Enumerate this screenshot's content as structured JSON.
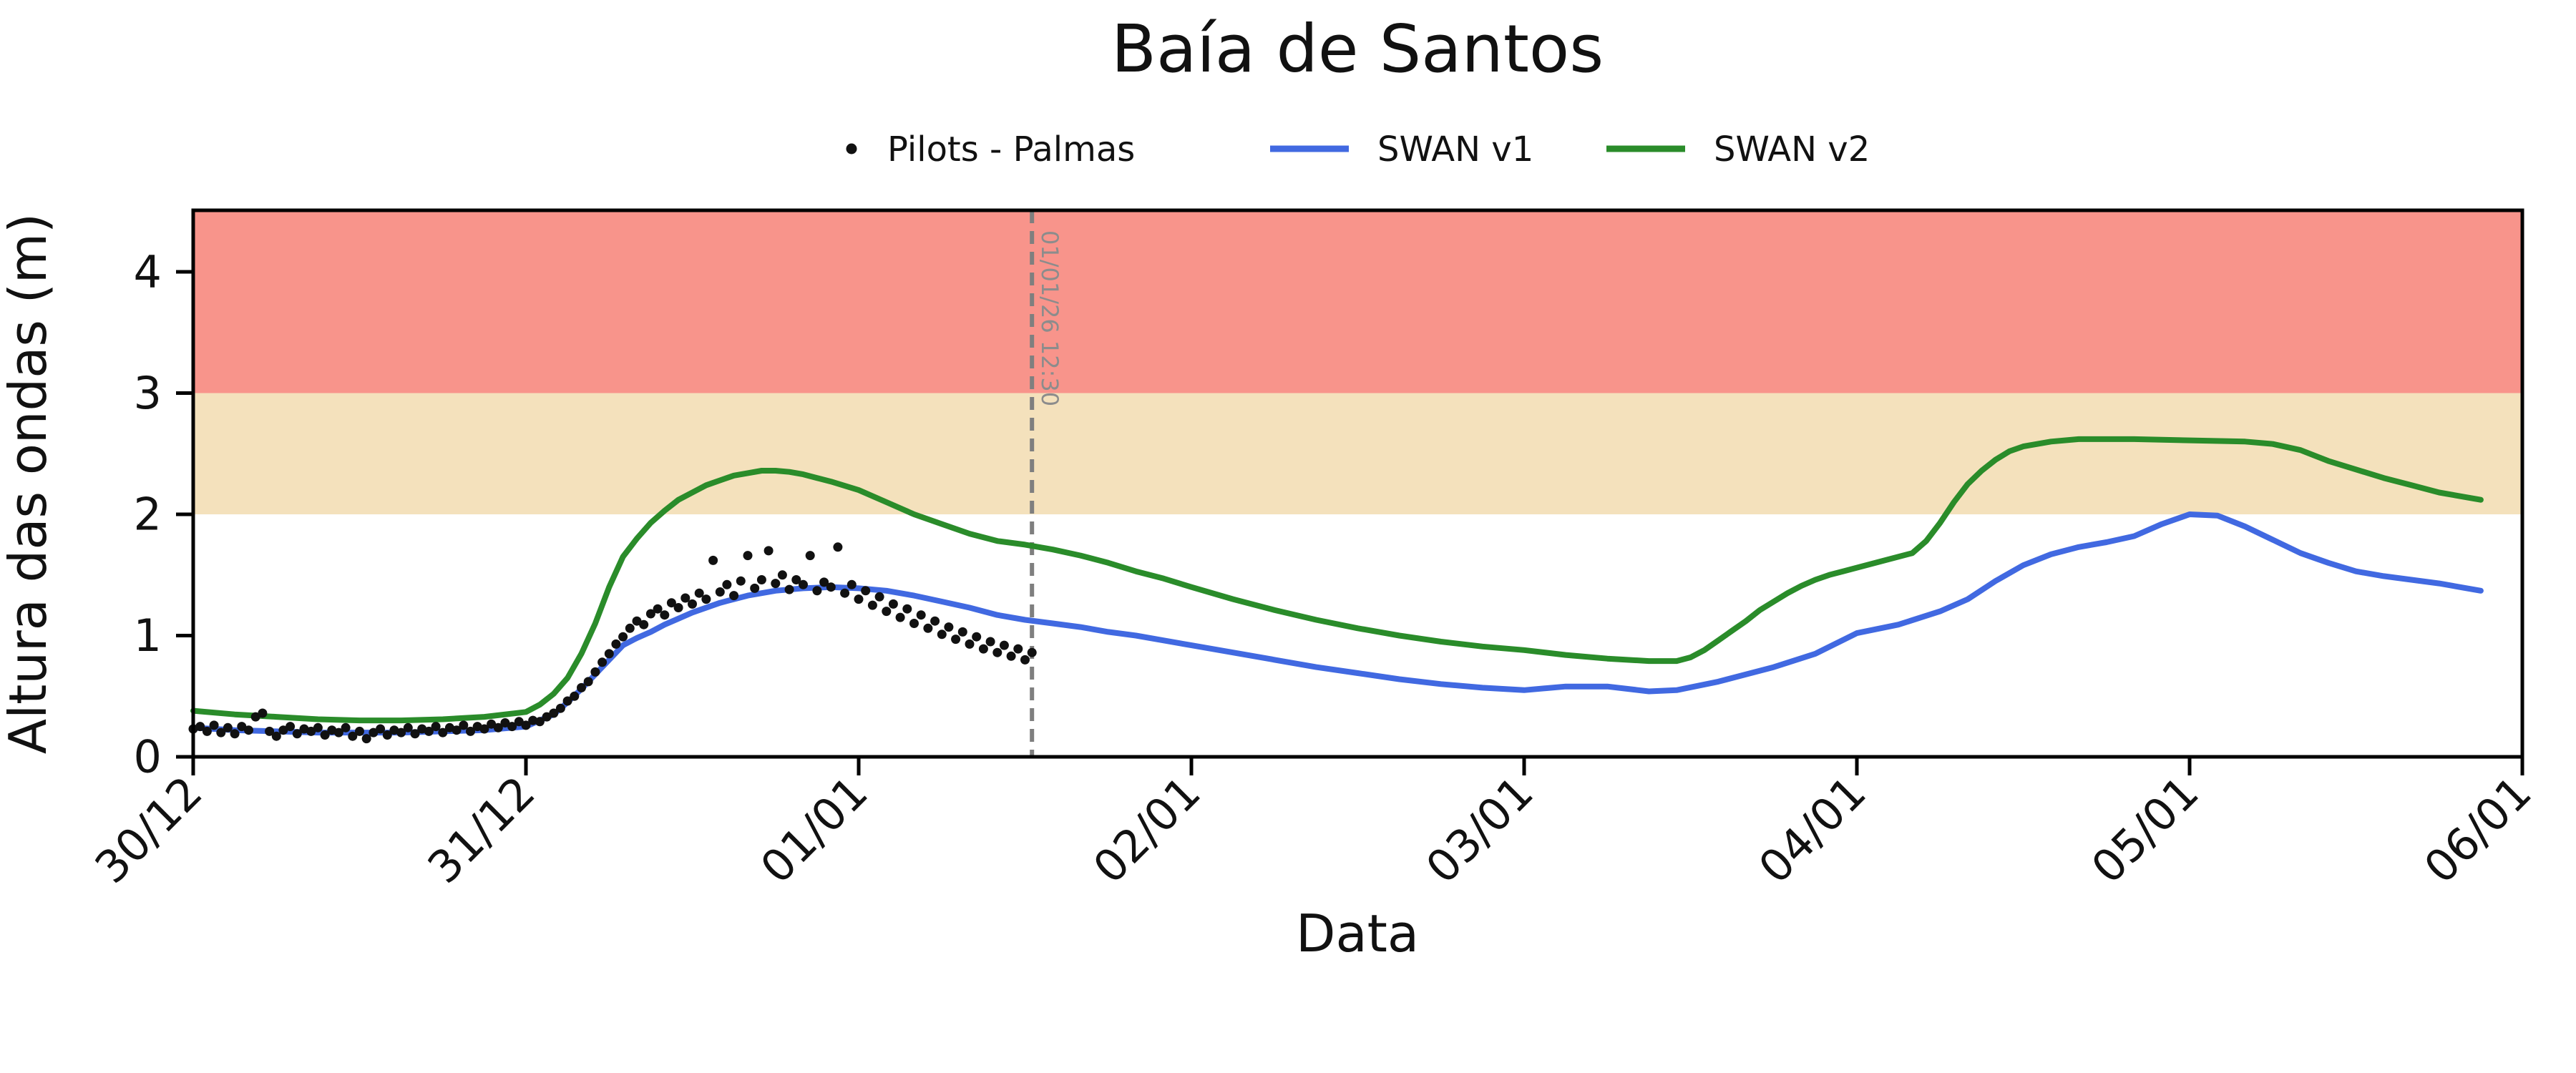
{
  "figure": {
    "title": "Baía de Santos",
    "xlabel": "Data",
    "ylabel": "Altura das ondas (m)",
    "background": "#ffffff"
  },
  "legend": {
    "items": [
      {
        "label": "Pilots - Palmas",
        "type": "scatter",
        "color": "#111111"
      },
      {
        "label": "SWAN v1",
        "type": "line",
        "color": "#4169e1"
      },
      {
        "label": "SWAN v2",
        "type": "line",
        "color": "#2a8c2a"
      }
    ]
  },
  "chart_data": {
    "type": "line",
    "title": "Baía de Santos",
    "xlabel": "Data",
    "ylabel": "Altura das ondas (m)",
    "x_unit": "hours since 30/12 00:00",
    "xlim": [
      0,
      168
    ],
    "ylim": [
      0,
      4.51
    ],
    "grid": false,
    "legend_position": "top-center",
    "yticks": [
      0,
      1,
      2,
      3,
      4
    ],
    "xticks": [
      {
        "hour": 0,
        "label": "30/12"
      },
      {
        "hour": 24,
        "label": "31/12"
      },
      {
        "hour": 48,
        "label": "01/01"
      },
      {
        "hour": 72,
        "label": "02/01"
      },
      {
        "hour": 96,
        "label": "03/01"
      },
      {
        "hour": 120,
        "label": "04/01"
      },
      {
        "hour": 144,
        "label": "05/01"
      },
      {
        "hour": 168,
        "label": "06/01"
      }
    ],
    "bands": [
      {
        "name": "danger-band",
        "from": 3,
        "to": 4.51,
        "color": "#f8948b"
      },
      {
        "name": "warning-band",
        "from": 2,
        "to": 3,
        "color": "#f4e1bc"
      }
    ],
    "vline": {
      "hour": 60.5,
      "label": "01/01/26 12:30",
      "color": "#7f7f7f",
      "label_color": "#8c8c8c"
    },
    "series": [
      {
        "name": "SWAN v1",
        "color": "#4169e1",
        "points": [
          [
            0,
            0.24
          ],
          [
            3,
            0.22
          ],
          [
            6,
            0.21
          ],
          [
            9,
            0.2
          ],
          [
            12,
            0.2
          ],
          [
            15,
            0.2
          ],
          [
            18,
            0.21
          ],
          [
            21,
            0.22
          ],
          [
            24,
            0.25
          ],
          [
            26,
            0.35
          ],
          [
            27,
            0.45
          ],
          [
            28,
            0.56
          ],
          [
            29,
            0.68
          ],
          [
            30,
            0.8
          ],
          [
            31,
            0.92
          ],
          [
            32,
            0.98
          ],
          [
            33,
            1.03
          ],
          [
            34,
            1.09
          ],
          [
            35,
            1.14
          ],
          [
            36,
            1.19
          ],
          [
            38,
            1.27
          ],
          [
            40,
            1.33
          ],
          [
            42,
            1.37
          ],
          [
            44,
            1.39
          ],
          [
            46,
            1.4
          ],
          [
            48,
            1.39
          ],
          [
            50,
            1.37
          ],
          [
            52,
            1.33
          ],
          [
            54,
            1.28
          ],
          [
            56,
            1.23
          ],
          [
            58,
            1.17
          ],
          [
            60,
            1.13
          ],
          [
            62,
            1.1
          ],
          [
            64,
            1.07
          ],
          [
            66,
            1.03
          ],
          [
            68,
            1.0
          ],
          [
            70,
            0.96
          ],
          [
            72,
            0.92
          ],
          [
            75,
            0.86
          ],
          [
            78,
            0.8
          ],
          [
            81,
            0.74
          ],
          [
            84,
            0.69
          ],
          [
            87,
            0.64
          ],
          [
            90,
            0.6
          ],
          [
            93,
            0.57
          ],
          [
            96,
            0.55
          ],
          [
            99,
            0.58
          ],
          [
            102,
            0.58
          ],
          [
            105,
            0.54
          ],
          [
            107,
            0.55
          ],
          [
            110,
            0.62
          ],
          [
            112,
            0.68
          ],
          [
            114,
            0.74
          ],
          [
            117,
            0.85
          ],
          [
            120,
            1.02
          ],
          [
            123,
            1.09
          ],
          [
            126,
            1.2
          ],
          [
            128,
            1.3
          ],
          [
            130,
            1.45
          ],
          [
            132,
            1.58
          ],
          [
            134,
            1.67
          ],
          [
            136,
            1.73
          ],
          [
            138,
            1.77
          ],
          [
            140,
            1.82
          ],
          [
            142,
            1.92
          ],
          [
            144,
            2.0
          ],
          [
            146,
            1.99
          ],
          [
            148,
            1.9
          ],
          [
            150,
            1.79
          ],
          [
            152,
            1.68
          ],
          [
            154,
            1.6
          ],
          [
            156,
            1.53
          ],
          [
            158,
            1.49
          ],
          [
            160,
            1.46
          ],
          [
            162,
            1.43
          ],
          [
            164,
            1.39
          ],
          [
            165,
            1.37
          ]
        ]
      },
      {
        "name": "SWAN v2",
        "color": "#2a8c2a",
        "points": [
          [
            0,
            0.38
          ],
          [
            3,
            0.35
          ],
          [
            6,
            0.33
          ],
          [
            9,
            0.31
          ],
          [
            12,
            0.3
          ],
          [
            15,
            0.3
          ],
          [
            18,
            0.31
          ],
          [
            21,
            0.33
          ],
          [
            24,
            0.37
          ],
          [
            25,
            0.43
          ],
          [
            26,
            0.52
          ],
          [
            27,
            0.65
          ],
          [
            28,
            0.85
          ],
          [
            29,
            1.1
          ],
          [
            30,
            1.4
          ],
          [
            31,
            1.65
          ],
          [
            32,
            1.8
          ],
          [
            33,
            1.93
          ],
          [
            34,
            2.03
          ],
          [
            35,
            2.12
          ],
          [
            36,
            2.18
          ],
          [
            37,
            2.24
          ],
          [
            38,
            2.28
          ],
          [
            39,
            2.32
          ],
          [
            40,
            2.34
          ],
          [
            41,
            2.36
          ],
          [
            42,
            2.36
          ],
          [
            43,
            2.35
          ],
          [
            44,
            2.33
          ],
          [
            45,
            2.3
          ],
          [
            46,
            2.27
          ],
          [
            48,
            2.2
          ],
          [
            50,
            2.1
          ],
          [
            52,
            2.0
          ],
          [
            54,
            1.92
          ],
          [
            56,
            1.84
          ],
          [
            58,
            1.78
          ],
          [
            60,
            1.75
          ],
          [
            62,
            1.71
          ],
          [
            64,
            1.66
          ],
          [
            66,
            1.6
          ],
          [
            68,
            1.53
          ],
          [
            70,
            1.47
          ],
          [
            72,
            1.4
          ],
          [
            75,
            1.3
          ],
          [
            78,
            1.21
          ],
          [
            81,
            1.13
          ],
          [
            84,
            1.06
          ],
          [
            87,
            1.0
          ],
          [
            90,
            0.95
          ],
          [
            93,
            0.91
          ],
          [
            96,
            0.88
          ],
          [
            99,
            0.84
          ],
          [
            102,
            0.81
          ],
          [
            105,
            0.79
          ],
          [
            107,
            0.79
          ],
          [
            108,
            0.82
          ],
          [
            109,
            0.88
          ],
          [
            110,
            0.96
          ],
          [
            111,
            1.04
          ],
          [
            112,
            1.12
          ],
          [
            113,
            1.21
          ],
          [
            114,
            1.28
          ],
          [
            115,
            1.35
          ],
          [
            116,
            1.41
          ],
          [
            117,
            1.46
          ],
          [
            118,
            1.5
          ],
          [
            119,
            1.53
          ],
          [
            120,
            1.56
          ],
          [
            122,
            1.62
          ],
          [
            124,
            1.68
          ],
          [
            125,
            1.78
          ],
          [
            126,
            1.93
          ],
          [
            127,
            2.1
          ],
          [
            128,
            2.25
          ],
          [
            129,
            2.36
          ],
          [
            130,
            2.45
          ],
          [
            131,
            2.52
          ],
          [
            132,
            2.56
          ],
          [
            134,
            2.6
          ],
          [
            136,
            2.62
          ],
          [
            140,
            2.62
          ],
          [
            144,
            2.61
          ],
          [
            148,
            2.6
          ],
          [
            150,
            2.58
          ],
          [
            152,
            2.53
          ],
          [
            154,
            2.44
          ],
          [
            156,
            2.37
          ],
          [
            158,
            2.3
          ],
          [
            160,
            2.24
          ],
          [
            162,
            2.18
          ],
          [
            164,
            2.14
          ],
          [
            165,
            2.12
          ]
        ]
      }
    ],
    "scatter": {
      "name": "Pilots - Palmas",
      "color": "#111111",
      "points": [
        [
          0,
          0.23
        ],
        [
          0.5,
          0.25
        ],
        [
          1,
          0.21
        ],
        [
          1.5,
          0.26
        ],
        [
          2,
          0.2
        ],
        [
          2.5,
          0.24
        ],
        [
          3,
          0.19
        ],
        [
          3.5,
          0.25
        ],
        [
          4,
          0.22
        ],
        [
          4.5,
          0.33
        ],
        [
          5,
          0.36
        ],
        [
          5.5,
          0.21
        ],
        [
          6,
          0.17
        ],
        [
          6.5,
          0.22
        ],
        [
          7,
          0.25
        ],
        [
          7.5,
          0.19
        ],
        [
          8,
          0.23
        ],
        [
          8.5,
          0.21
        ],
        [
          9,
          0.24
        ],
        [
          9.5,
          0.18
        ],
        [
          10,
          0.22
        ],
        [
          10.5,
          0.2
        ],
        [
          11,
          0.24
        ],
        [
          11.5,
          0.17
        ],
        [
          12,
          0.21
        ],
        [
          12.5,
          0.15
        ],
        [
          13,
          0.2
        ],
        [
          13.5,
          0.23
        ],
        [
          14,
          0.18
        ],
        [
          14.5,
          0.22
        ],
        [
          15,
          0.2
        ],
        [
          15.5,
          0.24
        ],
        [
          16,
          0.19
        ],
        [
          16.5,
          0.23
        ],
        [
          17,
          0.21
        ],
        [
          17.5,
          0.25
        ],
        [
          18,
          0.2
        ],
        [
          18.5,
          0.24
        ],
        [
          19,
          0.22
        ],
        [
          19.5,
          0.26
        ],
        [
          20,
          0.21
        ],
        [
          20.5,
          0.25
        ],
        [
          21,
          0.23
        ],
        [
          21.5,
          0.27
        ],
        [
          22,
          0.24
        ],
        [
          22.5,
          0.28
        ],
        [
          23,
          0.25
        ],
        [
          23.5,
          0.29
        ],
        [
          24,
          0.26
        ],
        [
          24.5,
          0.3
        ],
        [
          25,
          0.29
        ],
        [
          25.5,
          0.33
        ],
        [
          26,
          0.36
        ],
        [
          26.5,
          0.4
        ],
        [
          27,
          0.46
        ],
        [
          27.5,
          0.5
        ],
        [
          28,
          0.57
        ],
        [
          28.5,
          0.62
        ],
        [
          29,
          0.7
        ],
        [
          29.5,
          0.78
        ],
        [
          30,
          0.85
        ],
        [
          30.5,
          0.93
        ],
        [
          31,
          0.99
        ],
        [
          31.5,
          1.06
        ],
        [
          32,
          1.12
        ],
        [
          32.5,
          1.09
        ],
        [
          33,
          1.18
        ],
        [
          33.5,
          1.22
        ],
        [
          34,
          1.17
        ],
        [
          34.5,
          1.27
        ],
        [
          35,
          1.23
        ],
        [
          35.5,
          1.31
        ],
        [
          36,
          1.26
        ],
        [
          36.5,
          1.35
        ],
        [
          37,
          1.3
        ],
        [
          37.5,
          1.62
        ],
        [
          38,
          1.36
        ],
        [
          38.5,
          1.42
        ],
        [
          39,
          1.33
        ],
        [
          39.5,
          1.45
        ],
        [
          40,
          1.66
        ],
        [
          40.5,
          1.39
        ],
        [
          41,
          1.46
        ],
        [
          41.5,
          1.7
        ],
        [
          42,
          1.43
        ],
        [
          42.5,
          1.5
        ],
        [
          43,
          1.38
        ],
        [
          43.5,
          1.46
        ],
        [
          44,
          1.42
        ],
        [
          44.5,
          1.66
        ],
        [
          45,
          1.37
        ],
        [
          45.5,
          1.44
        ],
        [
          46,
          1.4
        ],
        [
          46.5,
          1.73
        ],
        [
          47,
          1.35
        ],
        [
          47.5,
          1.42
        ],
        [
          48,
          1.3
        ],
        [
          48.5,
          1.37
        ],
        [
          49,
          1.25
        ],
        [
          49.5,
          1.32
        ],
        [
          50,
          1.2
        ],
        [
          50.5,
          1.26
        ],
        [
          51,
          1.15
        ],
        [
          51.5,
          1.22
        ],
        [
          52,
          1.1
        ],
        [
          52.5,
          1.17
        ],
        [
          53,
          1.06
        ],
        [
          53.5,
          1.12
        ],
        [
          54,
          1.01
        ],
        [
          54.5,
          1.07
        ],
        [
          55,
          0.97
        ],
        [
          55.5,
          1.03
        ],
        [
          56,
          0.93
        ],
        [
          56.5,
          0.99
        ],
        [
          57,
          0.89
        ],
        [
          57.5,
          0.95
        ],
        [
          58,
          0.86
        ],
        [
          58.5,
          0.92
        ],
        [
          59,
          0.83
        ],
        [
          59.5,
          0.89
        ],
        [
          60,
          0.8
        ],
        [
          60.5,
          0.86
        ]
      ]
    }
  }
}
